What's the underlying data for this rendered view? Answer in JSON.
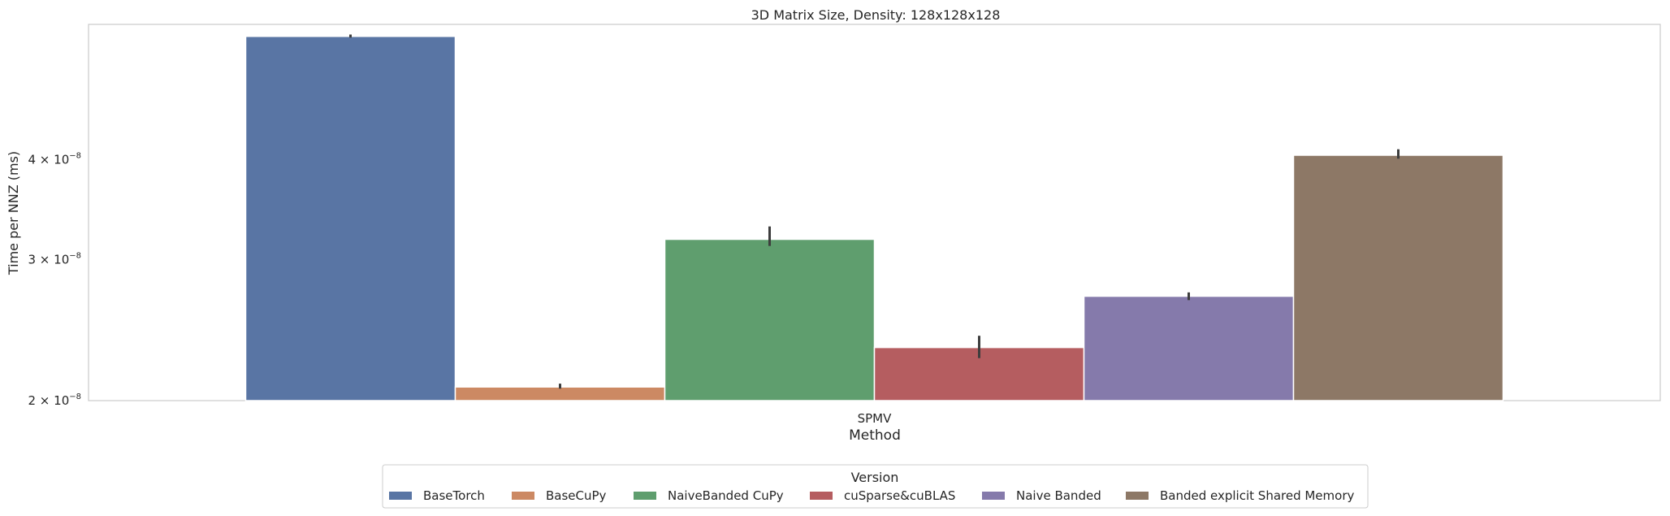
{
  "chart_data": {
    "type": "bar",
    "title": "3D Matrix Size, Density: 128x128x128",
    "xlabel": "Method",
    "ylabel": "Time per NNZ (ms)",
    "yscale": "log",
    "ylim": [
      2e-08,
      5.9e-08
    ],
    "yticks": [
      {
        "value": 2e-08,
        "mantissa": "2",
        "base": "10",
        "exp": "−8"
      },
      {
        "value": 3e-08,
        "mantissa": "3",
        "base": "10",
        "exp": "−8"
      },
      {
        "value": 4e-08,
        "mantissa": "4",
        "base": "10",
        "exp": "−8"
      }
    ],
    "categories": [
      "SPMV"
    ],
    "grid": false,
    "legend": {
      "title": "Version",
      "placement": "bottom-center"
    },
    "series": [
      {
        "name": "BaseTorch",
        "color": "#5975a4",
        "values": [
          5.7e-08
        ],
        "err_low": [
          5.68e-08
        ],
        "err_high": [
          5.73e-08
        ]
      },
      {
        "name": "BaseCuPy",
        "color": "#cc8963",
        "values": [
          2.08e-08
        ],
        "err_low": [
          2.07e-08
        ],
        "err_high": [
          2.1e-08
        ]
      },
      {
        "name": "NaiveBanded CuPy",
        "color": "#5f9e6e",
        "values": [
          3.18e-08
        ],
        "err_low": [
          3.12e-08
        ],
        "err_high": [
          3.3e-08
        ]
      },
      {
        "name": "cuSparse&cuBLAS",
        "color": "#b55d60",
        "values": [
          2.33e-08
        ],
        "err_low": [
          2.26e-08
        ],
        "err_high": [
          2.41e-08
        ]
      },
      {
        "name": "Naive Banded",
        "color": "#857aab",
        "values": [
          2.7e-08
        ],
        "err_low": [
          2.67e-08
        ],
        "err_high": [
          2.73e-08
        ]
      },
      {
        "name": "Banded explicit Shared Memory",
        "color": "#8d7866",
        "values": [
          4.05e-08
        ],
        "err_low": [
          4.01e-08
        ],
        "err_high": [
          4.12e-08
        ]
      }
    ]
  }
}
